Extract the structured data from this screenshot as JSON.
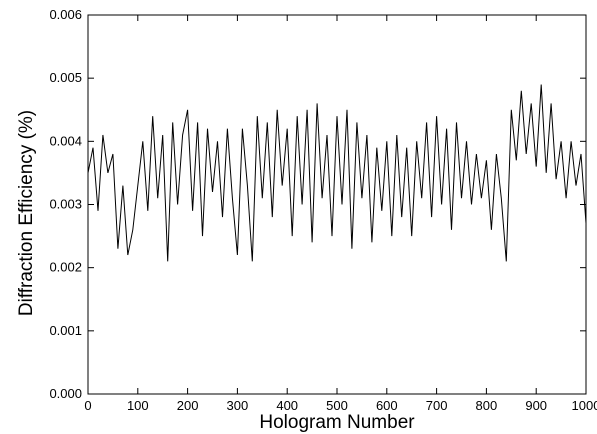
{
  "chart_data": {
    "type": "line",
    "title": "",
    "xlabel": "Hologram Number",
    "ylabel": "Diffraction Efficiency (%)",
    "xlim": [
      0,
      1000
    ],
    "ylim": [
      0,
      0.006
    ],
    "xticks": [
      "0",
      "100",
      "200",
      "300",
      "400",
      "500",
      "600",
      "700",
      "800",
      "900",
      "1000"
    ],
    "yticks": [
      "0.000",
      "0.001",
      "0.002",
      "0.003",
      "0.004",
      "0.005",
      "0.006"
    ],
    "grid": false,
    "line_color": "#000000",
    "series": [
      {
        "x": [
          0,
          10,
          20,
          30,
          40,
          50,
          60,
          70,
          80,
          90,
          100,
          110,
          120,
          130,
          140,
          150,
          160,
          170,
          180,
          190,
          200,
          210,
          220,
          230,
          240,
          250,
          260,
          270,
          280,
          290,
          300,
          310,
          320,
          330,
          340,
          350,
          360,
          370,
          380,
          390,
          400,
          410,
          420,
          430,
          440,
          450,
          460,
          470,
          480,
          490,
          500,
          510,
          520,
          530,
          540,
          550,
          560,
          570,
          580,
          590,
          600,
          610,
          620,
          630,
          640,
          650,
          660,
          670,
          680,
          690,
          700,
          710,
          720,
          730,
          740,
          750,
          760,
          770,
          780,
          790,
          800,
          810,
          820,
          830,
          840,
          850,
          860,
          870,
          880,
          890,
          900,
          910,
          920,
          930,
          940,
          950,
          960,
          970,
          980,
          990,
          1000
        ],
        "values": [
          0.0035,
          0.0039,
          0.0029,
          0.0041,
          0.0035,
          0.0038,
          0.0023,
          0.0033,
          0.0022,
          0.0026,
          0.0033,
          0.004,
          0.0029,
          0.0044,
          0.0031,
          0.0041,
          0.0021,
          0.0043,
          0.003,
          0.0041,
          0.0045,
          0.0029,
          0.0043,
          0.0025,
          0.0042,
          0.0032,
          0.004,
          0.0028,
          0.0042,
          0.0031,
          0.0022,
          0.0042,
          0.0033,
          0.0021,
          0.0044,
          0.0031,
          0.0043,
          0.0028,
          0.0045,
          0.0033,
          0.0042,
          0.0025,
          0.0044,
          0.003,
          0.0045,
          0.0024,
          0.0046,
          0.0031,
          0.0041,
          0.0025,
          0.0044,
          0.003,
          0.0045,
          0.0023,
          0.0043,
          0.0031,
          0.0041,
          0.0024,
          0.0039,
          0.0029,
          0.004,
          0.0025,
          0.0041,
          0.0028,
          0.0039,
          0.0025,
          0.004,
          0.0031,
          0.0043,
          0.0028,
          0.0044,
          0.003,
          0.0042,
          0.0026,
          0.0043,
          0.0031,
          0.004,
          0.003,
          0.0038,
          0.0031,
          0.0037,
          0.0026,
          0.0038,
          0.0031,
          0.0021,
          0.0045,
          0.0037,
          0.0048,
          0.0038,
          0.0046,
          0.0036,
          0.0049,
          0.0035,
          0.0046,
          0.0034,
          0.004,
          0.0031,
          0.004,
          0.0033,
          0.0038,
          0.0027
        ]
      }
    ]
  }
}
